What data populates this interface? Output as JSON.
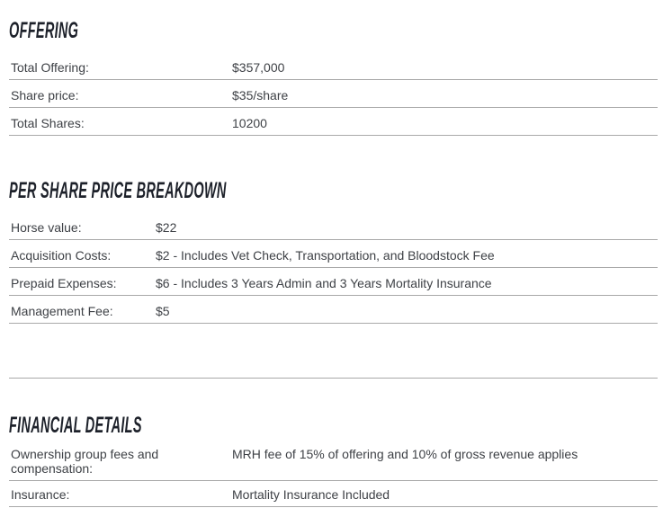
{
  "colors": {
    "heading_text": "#1d212a",
    "body_text": "#3e4146",
    "divider": "#a9a9a9",
    "background": "#ffffff"
  },
  "sections": [
    {
      "title": "OFFERING",
      "rows": [
        {
          "label": "Total Offering:",
          "value": "$357,000"
        },
        {
          "label": "Share price:",
          "value": "$35/share"
        },
        {
          "label": "Total Shares:",
          "value": "10200"
        }
      ]
    },
    {
      "title": "PER SHARE PRICE BREAKDOWN",
      "rows": [
        {
          "label": "Horse value:",
          "value": "$22"
        },
        {
          "label": "Acquisition Costs:",
          "value": "$2 - Includes Vet Check, Transportation, and Bloodstock Fee"
        },
        {
          "label": "Prepaid Expenses:",
          "value": "$6 - Includes 3 Years Admin and 3 Years Mortality Insurance"
        },
        {
          "label": "Management Fee:",
          "value": "$5"
        },
        {
          "label": "",
          "value": ""
        }
      ]
    },
    {
      "title": "FINANCIAL DETAILS",
      "rows": [
        {
          "label": "Ownership group fees and compensation:",
          "value": "MRH fee of 15% of offering and 10% of gross revenue applies"
        },
        {
          "label": "Insurance:",
          "value": "Mortality Insurance Included"
        }
      ]
    }
  ]
}
